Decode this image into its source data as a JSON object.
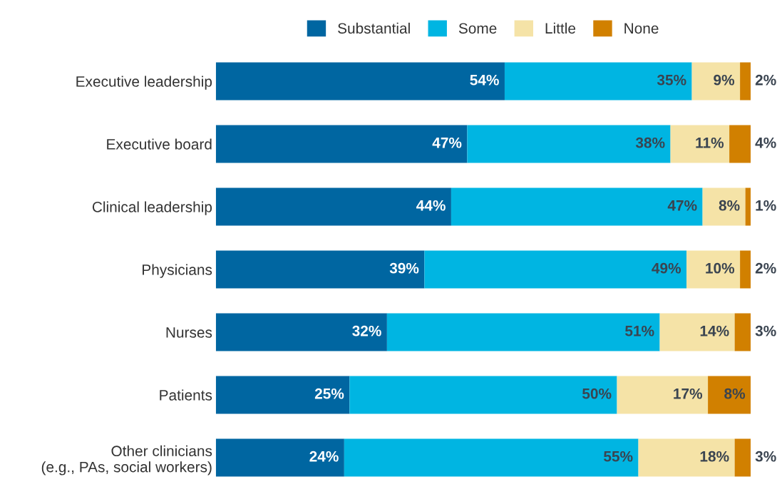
{
  "chart_data": {
    "type": "bar",
    "orientation": "horizontal",
    "stacked": true,
    "legend": "top",
    "tick_labels": "y",
    "categories": [
      "Executive leadership",
      "Executive board",
      "Clinical leadership",
      "Physicians",
      "Nurses",
      "Patients",
      "Other clinicians\n(e.g., PAs, social workers)"
    ],
    "series": [
      {
        "name": "Substantial",
        "color": "#0066a1",
        "values": [
          54,
          47,
          44,
          39,
          32,
          25,
          24
        ],
        "value_labels": [
          "54%",
          "47%",
          "44%",
          "39%",
          "32%",
          "25%",
          "24%"
        ]
      },
      {
        "name": "Some",
        "color": "#00b5e2",
        "values": [
          35,
          38,
          47,
          49,
          51,
          50,
          55
        ],
        "value_labels": [
          "35%",
          "38%",
          "47%",
          "49%",
          "51%",
          "50%",
          "55%"
        ]
      },
      {
        "name": "Little",
        "color": "#f5e3a7",
        "values": [
          9,
          11,
          8,
          10,
          14,
          17,
          18
        ],
        "value_labels": [
          "9%",
          "11%",
          "8%",
          "10%",
          "14%",
          "17%",
          "18%"
        ]
      },
      {
        "name": "None",
        "color": "#d18000",
        "values": [
          2,
          4,
          1,
          2,
          3,
          8,
          3
        ],
        "value_labels": [
          "2%",
          "4%",
          "1%",
          "2%",
          "3%",
          "8%",
          "3%"
        ]
      }
    ]
  }
}
